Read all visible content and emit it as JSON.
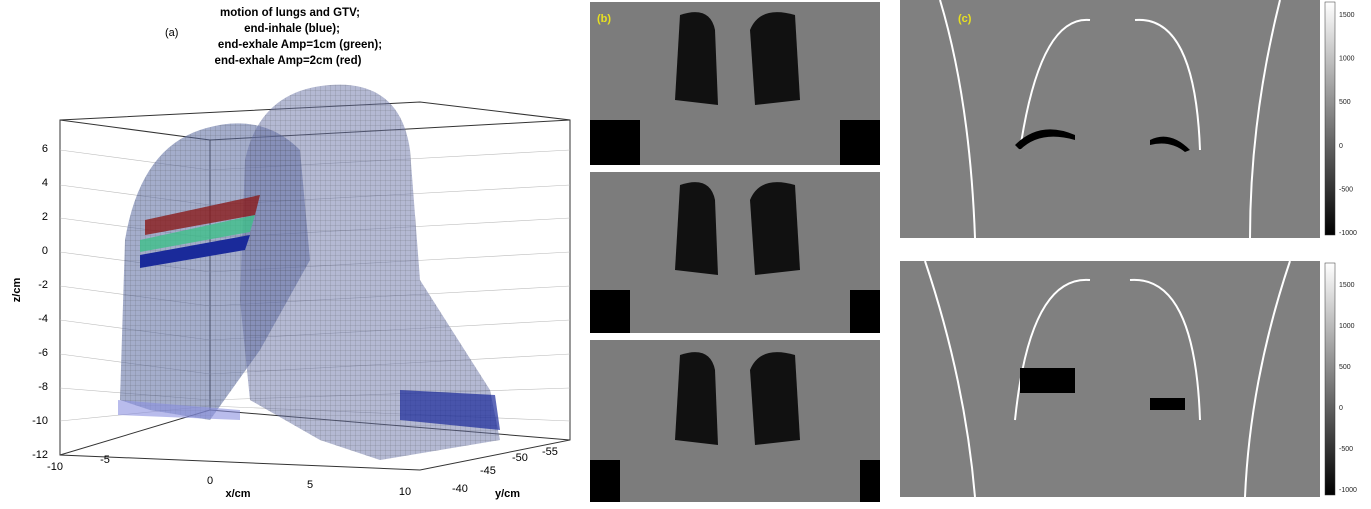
{
  "panel_a": {
    "label": "(a)",
    "title_lines": [
      "motion of lungs and GTV;",
      "end-inhale (blue);",
      "end-exhale Amp=1cm (green);",
      "end-exhale Amp=2cm (red)"
    ],
    "x_axis_label": "x/cm",
    "y_axis_label": "y/cm",
    "z_axis_label": "z/cm",
    "z_ticks": [
      "6",
      "4",
      "2",
      "0",
      "-2",
      "-4",
      "-6",
      "-8",
      "-10",
      "-12"
    ],
    "x_ticks": [
      "-10",
      "-5",
      "0",
      "5",
      "10"
    ],
    "y_ticks": [
      "-40",
      "-45",
      "-50",
      "-55"
    ]
  },
  "panel_b": {
    "label": "(b)"
  },
  "panel_c": {
    "label": "(c)",
    "colorbar_top_ticks": [
      "1500",
      "1000",
      "500",
      "0",
      "-500",
      "-1000"
    ],
    "colorbar_bottom_ticks": [
      "1500",
      "1000",
      "500",
      "0",
      "-500",
      "-1000"
    ]
  }
}
